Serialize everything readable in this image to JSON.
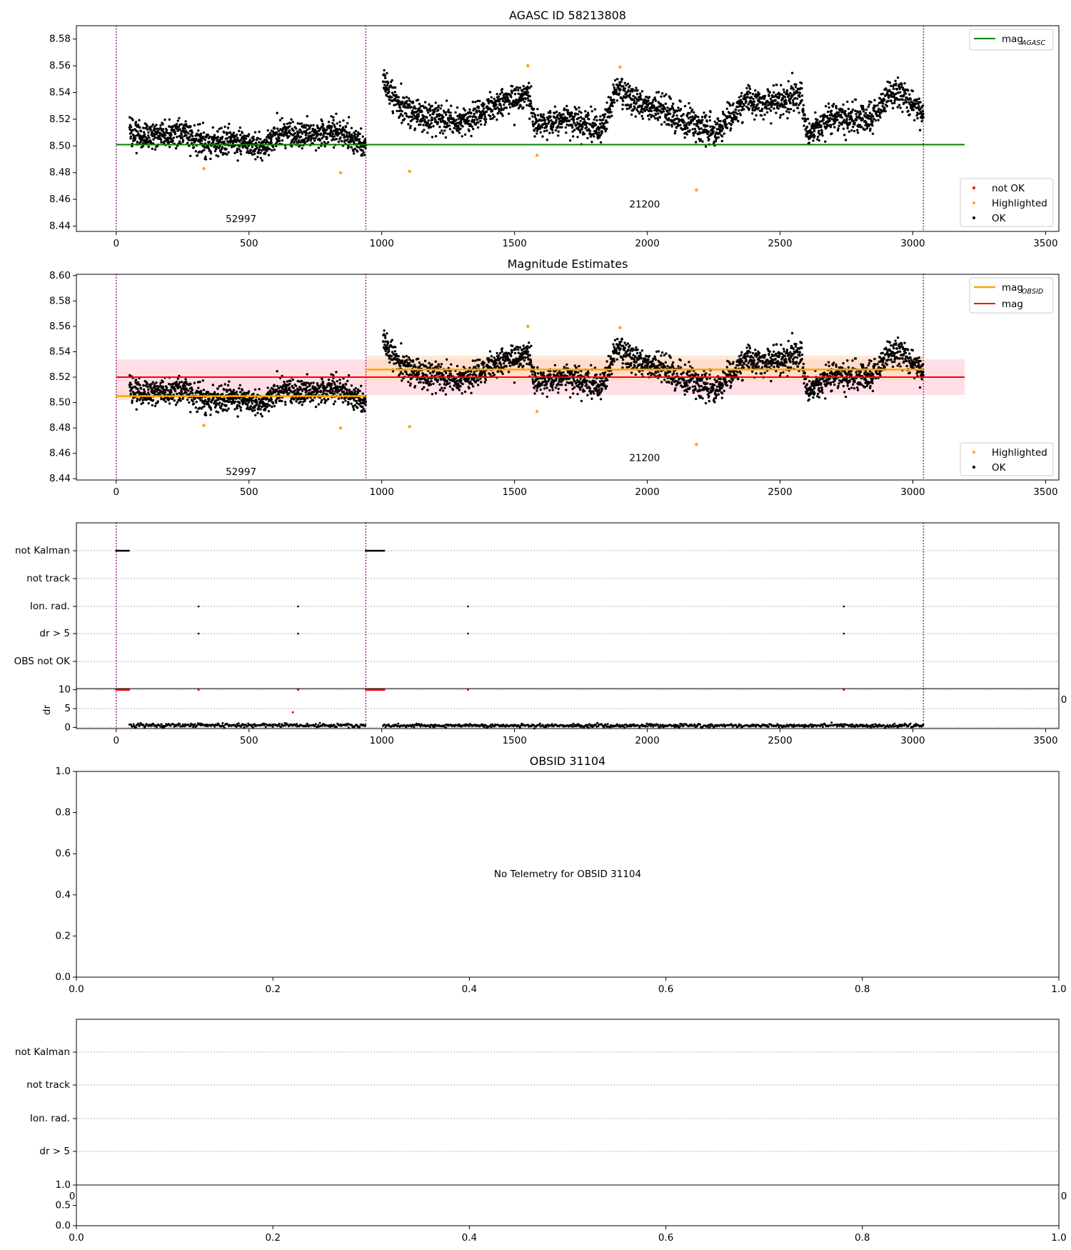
{
  "colors": {
    "ok": "#000000",
    "highlighted": "#ffa500",
    "not_ok": "#ff0000",
    "mag_agasc": "#008000",
    "mag_obsid": "#ffa500",
    "mag": "#ff0000",
    "obs_boundary": "#800080",
    "mag_band": "#ffc0cb",
    "obsid_band": "#ffdab9",
    "grid": "#b0b0b0"
  },
  "chart_data": [
    {
      "id": "agasc",
      "type": "scatter",
      "title": "AGASC ID 58213808",
      "xlim": [
        -150,
        3550
      ],
      "ylim": [
        8.436,
        8.59
      ],
      "xticks": [
        "0",
        "500",
        "1000",
        "1500",
        "2000",
        "2500",
        "3000",
        "3500"
      ],
      "yticks": [
        "8.44",
        "8.46",
        "8.48",
        "8.50",
        "8.52",
        "8.54",
        "8.56",
        "8.58"
      ],
      "legend_upper": {
        "placement": "top-right",
        "entries": [
          {
            "name": "mag",
            "sub": "AGASC"
          }
        ]
      },
      "legend_lower": {
        "placement": "bottom-right",
        "entries": [
          "not OK",
          "Highlighted",
          "OK"
        ]
      },
      "obs_boundaries": [
        0,
        940,
        3040
      ],
      "obsid_labels": [
        {
          "text": "52997",
          "x": 470,
          "y": 8.443
        },
        {
          "text": "21200",
          "x": 1990,
          "y": 8.454
        }
      ],
      "mag_agasc": {
        "x": [
          0,
          3195
        ],
        "y": 8.501
      },
      "highlighted": {
        "x": [
          330,
          845,
          1105,
          1550,
          1585,
          1897,
          2185
        ],
        "y": [
          8.483,
          8.48,
          8.481,
          8.56,
          8.493,
          8.559,
          8.467
        ]
      }
    },
    {
      "id": "estimates",
      "type": "scatter",
      "title": "Magnitude Estimates",
      "xlim": [
        -150,
        3550
      ],
      "ylim": [
        8.439,
        8.601
      ],
      "xticks": [
        "0",
        "500",
        "1000",
        "1500",
        "2000",
        "2500",
        "3000",
        "3500"
      ],
      "yticks": [
        "8.44",
        "8.46",
        "8.48",
        "8.50",
        "8.52",
        "8.54",
        "8.56",
        "8.58",
        "8.60"
      ],
      "legend_upper": {
        "placement": "top-right",
        "entries": [
          {
            "name": "mag",
            "sub": "OBSID"
          },
          {
            "name": "mag",
            "sub": ""
          }
        ]
      },
      "legend_lower": {
        "placement": "bottom-right",
        "entries": [
          "Highlighted",
          "OK"
        ]
      },
      "obs_boundaries": [
        0,
        940,
        3040
      ],
      "obsid_labels": [
        {
          "text": "52997",
          "x": 470,
          "y": 8.443
        },
        {
          "text": "21200",
          "x": 1990,
          "y": 8.454
        }
      ],
      "mag": {
        "x": [
          0,
          3195
        ],
        "y": 8.52,
        "band": [
          8.506,
          8.534
        ]
      },
      "mag_obsid": [
        {
          "x": [
            0,
            940
          ],
          "y": 8.505,
          "band": [
            8.502,
            8.508
          ]
        },
        {
          "x": [
            940,
            3040
          ],
          "y": 8.526,
          "band": [
            8.517,
            8.537
          ]
        }
      ],
      "highlighted": {
        "x": [
          330,
          845,
          1105,
          1550,
          1585,
          1897,
          2185
        ],
        "y": [
          8.482,
          8.48,
          8.481,
          8.56,
          8.493,
          8.559,
          8.467
        ]
      }
    },
    {
      "id": "flags",
      "type": "scatter",
      "xlim": [
        -150,
        3550
      ],
      "categories": [
        "not Kalman",
        "not track",
        "Ion. rad.",
        "dr > 5",
        "OBS not OK"
      ],
      "overlap_tick": "0",
      "not_kalman_spans": [
        [
          0,
          50
        ],
        [
          940,
          1010
        ]
      ],
      "ion_rad_x": [
        310,
        685,
        1325,
        2740
      ],
      "dr5_x": [
        310,
        685,
        1325,
        2740
      ],
      "obs_boundaries": [
        0,
        940,
        3040
      ]
    },
    {
      "id": "dr",
      "type": "scatter",
      "ylabel": "dr",
      "xlim": [
        -150,
        3550
      ],
      "ylim": [
        -0.3,
        10.3
      ],
      "xticks": [
        "0",
        "500",
        "1000",
        "1500",
        "2000",
        "2500",
        "3000",
        "3500"
      ],
      "yticks": [
        "0",
        "5",
        "10"
      ],
      "red_at_10_spans": [
        [
          0,
          50
        ],
        [
          940,
          1010
        ]
      ],
      "red_at_10_x": [
        310,
        685,
        1325,
        2740
      ],
      "red_extra": {
        "x": 665,
        "y": 4
      },
      "obs_boundaries": [
        0,
        940,
        3040
      ]
    },
    {
      "id": "obsid",
      "type": "scatter",
      "title": "OBSID 31104",
      "xlim": [
        0,
        1
      ],
      "ylim": [
        0,
        1
      ],
      "xticks": [
        "0.0",
        "0.2",
        "0.4",
        "0.6",
        "0.8",
        "1.0"
      ],
      "yticks": [
        "0.0",
        "0.2",
        "0.4",
        "0.6",
        "0.8",
        "1.0"
      ],
      "message": "No Telemetry for OBSID 31104"
    },
    {
      "id": "obsid_flags",
      "type": "scatter",
      "categories": [
        "not Kalman",
        "not track",
        "Ion. rad.",
        "dr > 5"
      ],
      "overlap_ticks": [
        "0",
        "0"
      ]
    },
    {
      "id": "obsid_dr",
      "type": "scatter",
      "xlim": [
        0,
        1
      ],
      "ylim": [
        0,
        1
      ],
      "xticks": [
        "0.0",
        "0.2",
        "0.4",
        "0.6",
        "0.8",
        "1.0"
      ],
      "yticks": [
        "0.0",
        "0.5",
        "1.0"
      ]
    }
  ]
}
